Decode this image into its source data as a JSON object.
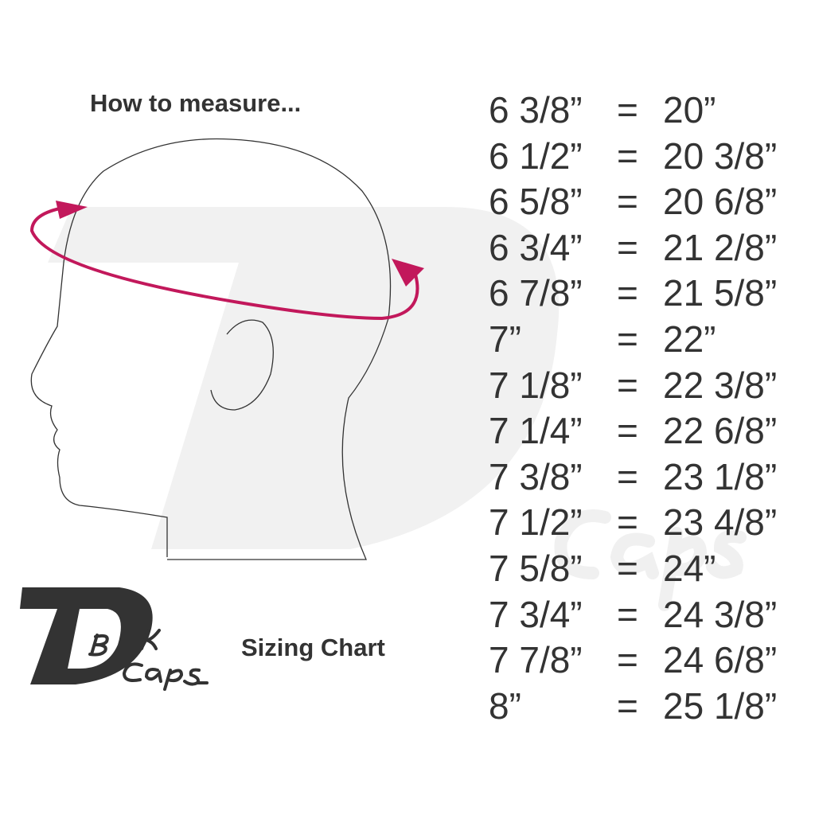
{
  "heading": "How to measure...",
  "subtitle": "Sizing Chart",
  "logo": {
    "text": "DBK Caps",
    "color": "#333333"
  },
  "accent_color": "#c2185b",
  "sizes": [
    {
      "hat": "6 3/8”",
      "eq": "=",
      "inches": "20”"
    },
    {
      "hat": "6 1/2”",
      "eq": "=",
      "inches": "20 3/8”"
    },
    {
      "hat": "6 5/8”",
      "eq": "=",
      "inches": "20 6/8”"
    },
    {
      "hat": "6 3/4”",
      "eq": "=",
      "inches": "21 2/8”"
    },
    {
      "hat": "6 7/8”",
      "eq": "=",
      "inches": "21 5/8”"
    },
    {
      "hat": "7”",
      "eq": "=",
      "inches": "22”"
    },
    {
      "hat": "7 1/8”",
      "eq": "=",
      "inches": "22 3/8”"
    },
    {
      "hat": "7 1/4”",
      "eq": "=",
      "inches": "22 6/8”"
    },
    {
      "hat": "7 3/8”",
      "eq": "=",
      "inches": "23 1/8”"
    },
    {
      "hat": "7 1/2”",
      "eq": "=",
      "inches": "23 4/8”"
    },
    {
      "hat": "7 5/8”",
      "eq": "=",
      "inches": "24”"
    },
    {
      "hat": "7 3/4”",
      "eq": "=",
      "inches": "24 3/8”"
    },
    {
      "hat": "7 7/8”",
      "eq": "=",
      "inches": "24 6/8”"
    },
    {
      "hat": "8”",
      "eq": "=",
      "inches": "25 1/8”"
    }
  ]
}
